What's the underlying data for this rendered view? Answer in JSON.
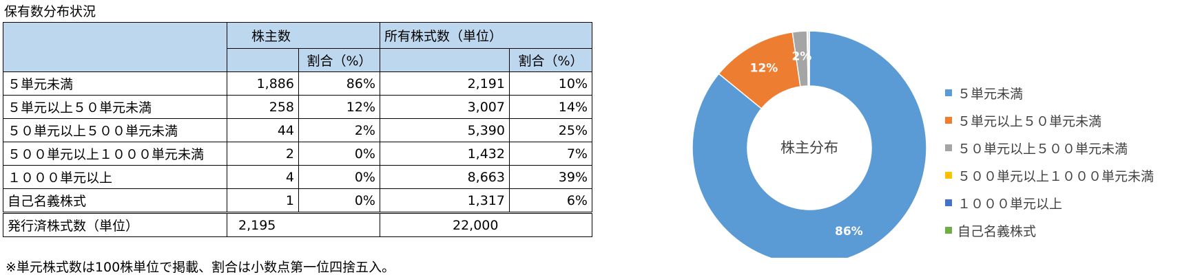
{
  "title": "保有数分布状況",
  "table": {
    "headers": {
      "shareholders": "株主数",
      "shares": "所有株式数（単位）",
      "ratio": "割合（%）"
    },
    "rows": [
      {
        "label": "５単元未満",
        "holders": "1,886",
        "holders_pct": "86%",
        "shares": "2,191",
        "shares_pct": "10%"
      },
      {
        "label": "５単元以上５０単元未満",
        "holders": "258",
        "holders_pct": "12%",
        "shares": "3,007",
        "shares_pct": "14%"
      },
      {
        "label": "５０単元以上５００単元未満",
        "holders": "44",
        "holders_pct": "2%",
        "shares": "5,390",
        "shares_pct": "25%"
      },
      {
        "label": "５００単元以上１０００単元未満",
        "holders": "2",
        "holders_pct": "0%",
        "shares": "1,432",
        "shares_pct": "7%"
      },
      {
        "label": "１０００単元以上",
        "holders": "4",
        "holders_pct": "0%",
        "shares": "8,663",
        "shares_pct": "39%"
      },
      {
        "label": "自己名義株式",
        "holders": "1",
        "holders_pct": "0%",
        "shares": "1,317",
        "shares_pct": "6%"
      }
    ],
    "total": {
      "label": "発行済株式数（単位）",
      "holders": "2,195",
      "shares": "22,000"
    }
  },
  "note": "※単元株式数は100株単位で掲載、割合は小数点第一位四捨五入。",
  "chart_data": {
    "type": "pie",
    "variant": "donut",
    "title": "株主分布",
    "categories": [
      "５単元未満",
      "５単元以上５０単元未満",
      "５０単元以上５００単元未満",
      "５００単元以上１０００単元未満",
      "１０００単元以上",
      "自己名義株式"
    ],
    "values": [
      1886,
      258,
      44,
      2,
      4,
      1
    ],
    "data_labels": [
      "86%",
      "12%",
      "2%",
      "",
      "",
      ""
    ],
    "colors": [
      "#5b9bd5",
      "#ed7d31",
      "#a5a5a5",
      "#ffc000",
      "#4472c4",
      "#70ad47"
    ],
    "legend_position": "right"
  }
}
